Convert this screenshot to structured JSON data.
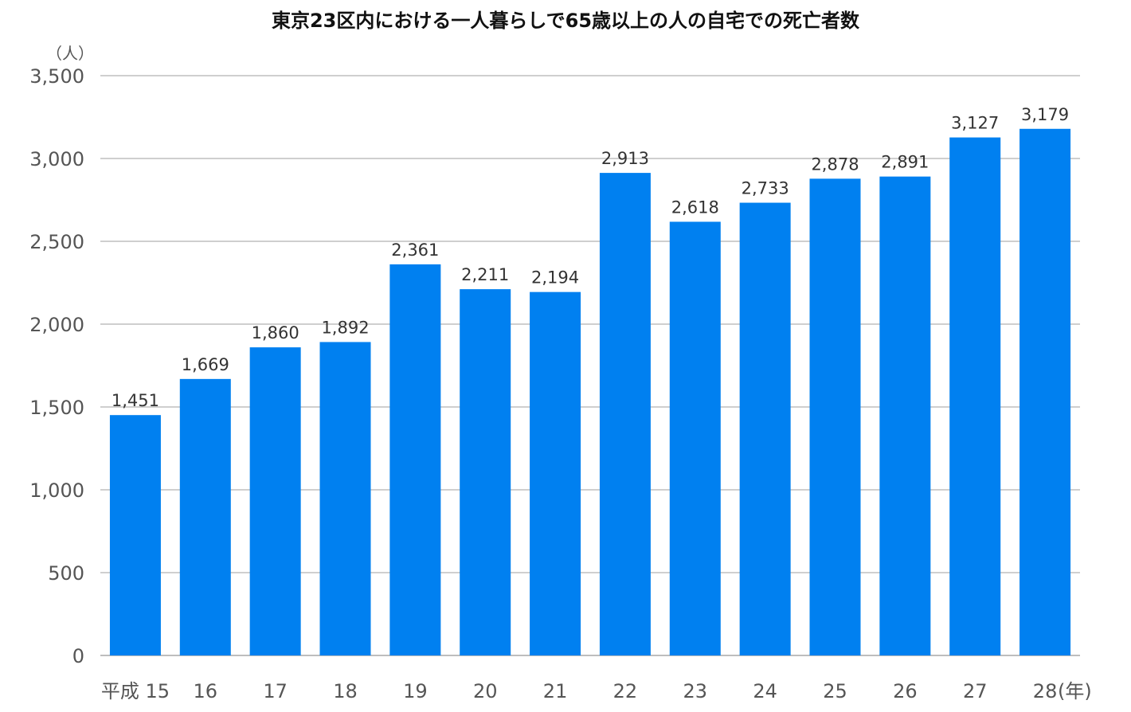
{
  "chart_data": {
    "type": "bar",
    "title": "東京23区内における一人暮らしで65歳以上の人の自宅での死亡者数",
    "ylabel": "（人）",
    "xlabel": "(年)",
    "categories": [
      "平成 15",
      "16",
      "17",
      "18",
      "19",
      "20",
      "21",
      "22",
      "23",
      "24",
      "25",
      "26",
      "27",
      "28"
    ],
    "values": [
      1451,
      1669,
      1860,
      1892,
      2361,
      2211,
      2194,
      2913,
      2618,
      2733,
      2878,
      2891,
      3127,
      3179
    ],
    "value_labels": [
      "1,451",
      "1,669",
      "1,860",
      "1,892",
      "2,361",
      "2,211",
      "2,194",
      "2,913",
      "2,618",
      "2,733",
      "2,878",
      "2,891",
      "3,127",
      "3,179"
    ],
    "yticks": [
      0,
      500,
      1000,
      1500,
      2000,
      2500,
      3000,
      3500
    ],
    "ytick_labels": [
      "0",
      "500",
      "1,000",
      "1,500",
      "2,000",
      "2,500",
      "3,000",
      "3,500"
    ],
    "ylim": [
      0,
      3500
    ],
    "grid": true,
    "bar_color": "#0080f0",
    "grid_color": "#cfcfcf"
  }
}
